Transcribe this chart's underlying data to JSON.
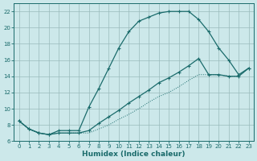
{
  "xlabel": "Humidex (Indice chaleur)",
  "bg_color": "#cce8ea",
  "grid_color": "#99bbbb",
  "line_color": "#1a6b6b",
  "xlim": [
    -0.5,
    23.5
  ],
  "ylim": [
    6,
    23
  ],
  "xticks": [
    0,
    1,
    2,
    3,
    4,
    5,
    6,
    7,
    8,
    9,
    10,
    11,
    12,
    13,
    14,
    15,
    16,
    17,
    18,
    19,
    20,
    21,
    22,
    23
  ],
  "yticks": [
    6,
    8,
    10,
    12,
    14,
    16,
    18,
    20,
    22
  ],
  "line1_x": [
    0,
    1,
    2,
    3,
    4,
    5,
    6,
    7,
    8,
    9,
    10,
    11,
    12,
    13,
    14,
    15,
    16,
    17,
    18,
    19,
    20,
    21,
    22,
    23
  ],
  "line1_y": [
    8.5,
    7.5,
    7.0,
    6.8,
    7.3,
    7.3,
    7.3,
    10.2,
    12.5,
    15.0,
    17.5,
    19.5,
    20.8,
    21.3,
    21.8,
    22.0,
    22.0,
    22.0,
    21.0,
    19.5,
    17.5,
    16.0,
    14.2,
    15.0
  ],
  "line2_x": [
    0,
    1,
    2,
    3,
    4,
    5,
    6,
    7,
    8,
    9,
    10,
    11,
    12,
    13,
    14,
    15,
    16,
    17,
    18,
    19,
    20,
    21,
    22,
    23
  ],
  "line2_y": [
    8.5,
    7.5,
    7.0,
    6.8,
    7.0,
    7.0,
    7.0,
    7.3,
    8.2,
    9.0,
    9.8,
    10.7,
    11.5,
    12.3,
    13.2,
    13.8,
    14.5,
    15.3,
    16.2,
    14.2,
    14.2,
    14.0,
    14.0,
    15.0
  ],
  "line3_x": [
    0,
    1,
    2,
    3,
    4,
    5,
    6,
    7,
    8,
    9,
    10,
    11,
    12,
    13,
    14,
    15,
    16,
    17,
    18,
    19,
    20,
    21,
    22,
    23
  ],
  "line3_y": [
    8.5,
    7.5,
    7.0,
    6.8,
    7.0,
    7.0,
    7.0,
    7.0,
    7.5,
    8.0,
    8.7,
    9.3,
    10.0,
    10.8,
    11.5,
    12.0,
    12.7,
    13.5,
    14.2,
    14.2,
    14.2,
    14.0,
    14.0,
    15.0
  ]
}
